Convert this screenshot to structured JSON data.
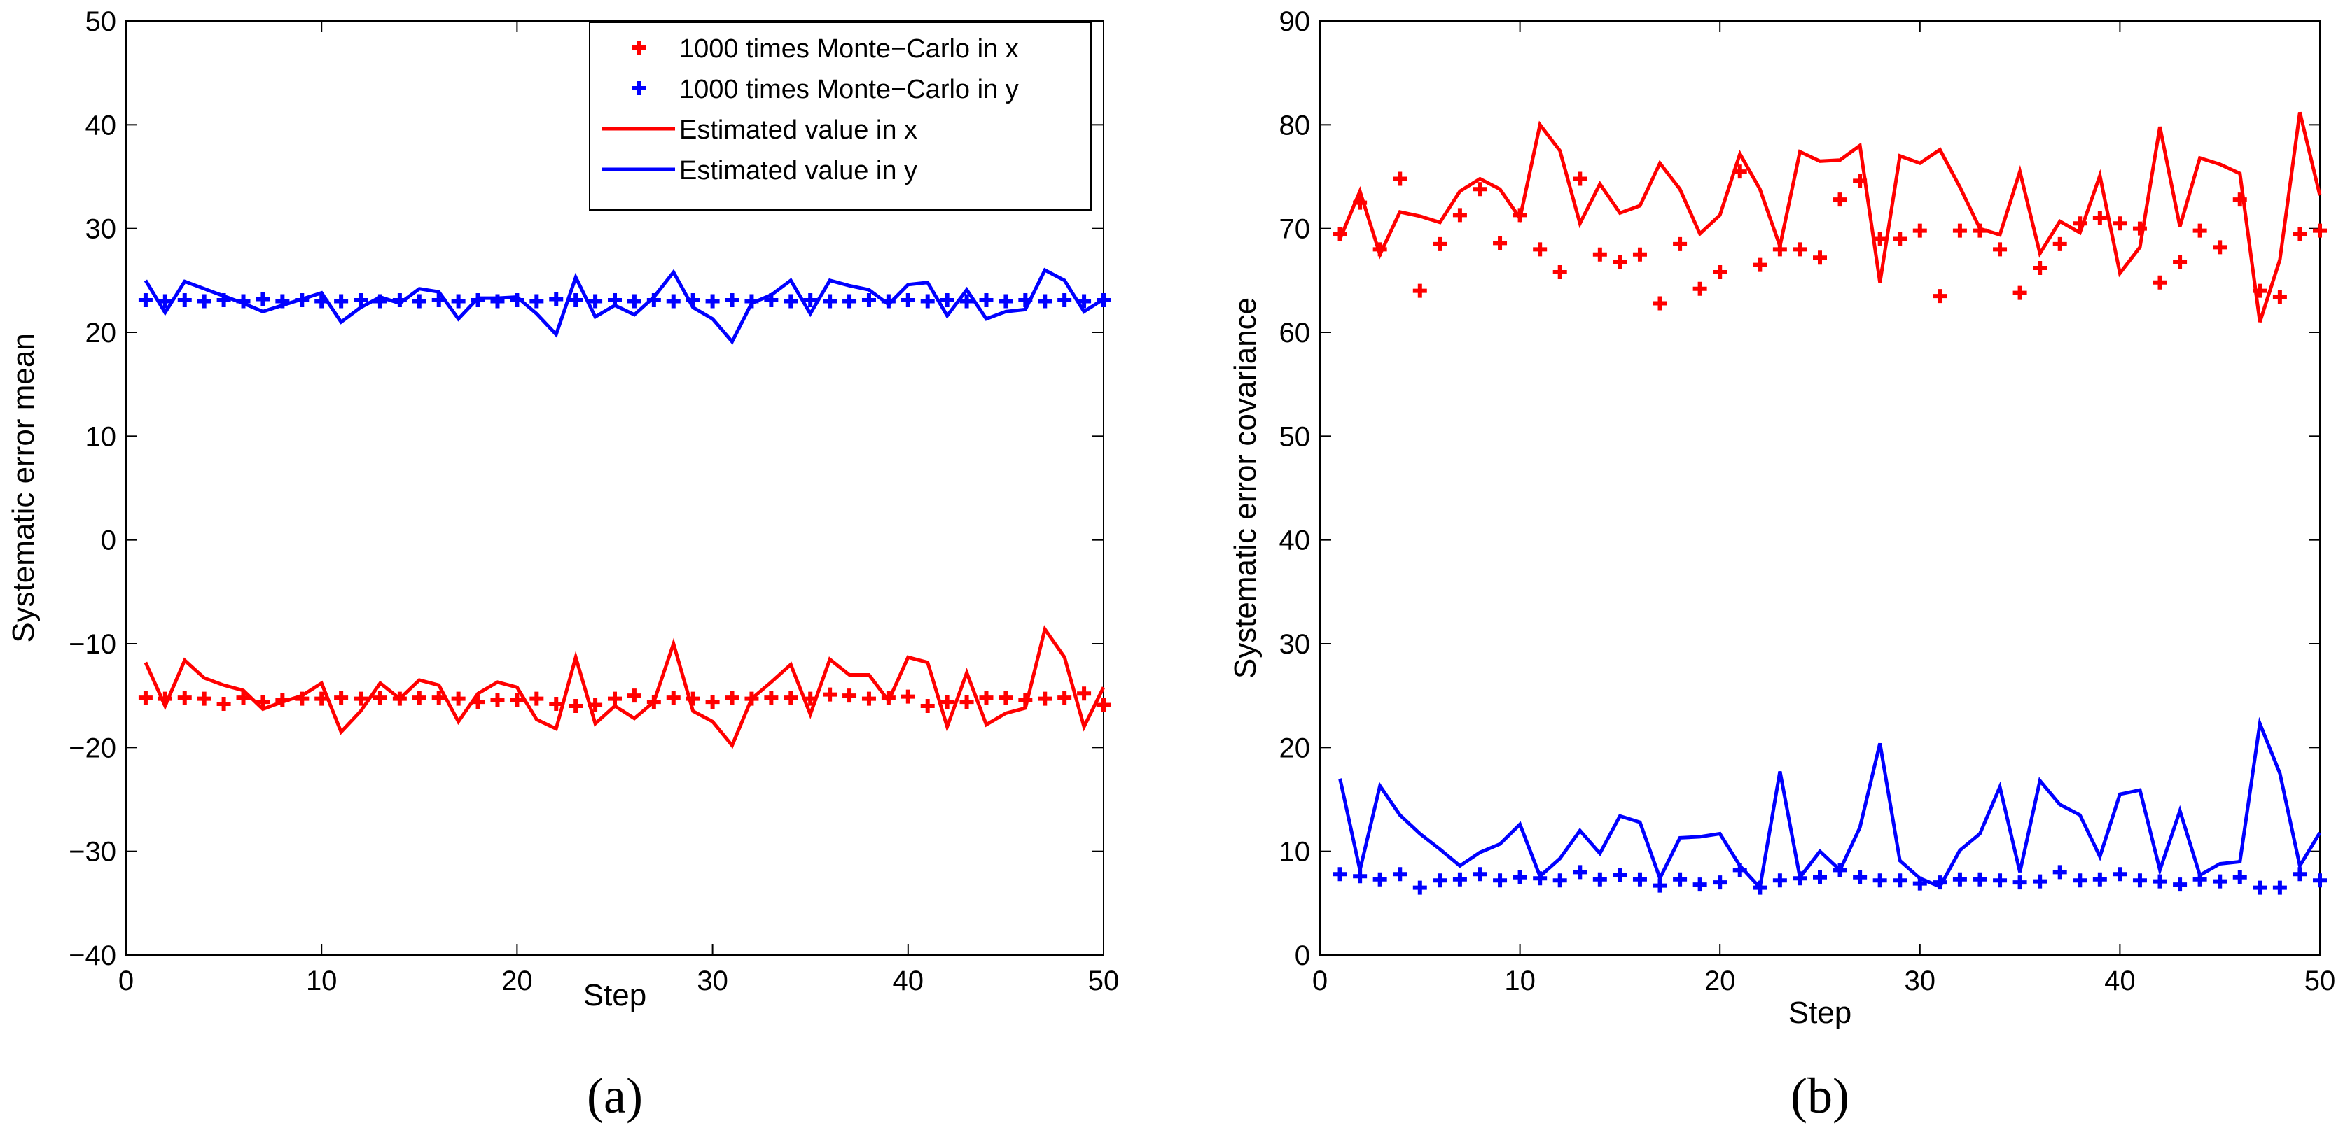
{
  "chart_data": [
    {
      "type": "line",
      "caption": "(a)",
      "xlabel": "Step",
      "ylabel": "Systematic error mean",
      "xlim": [
        0,
        50
      ],
      "ylim": [
        -40,
        50
      ],
      "xticks": [
        0,
        10,
        20,
        30,
        40,
        50
      ],
      "yticks": [
        -40,
        -30,
        -20,
        -10,
        0,
        10,
        20,
        30,
        40,
        50
      ],
      "legend_position": "top-right",
      "series": [
        {
          "name": "1000 times Monte−Carlo in x",
          "style": "markers",
          "color": "#ff0000",
          "x": [
            1,
            2,
            3,
            4,
            5,
            6,
            7,
            8,
            9,
            10,
            11,
            12,
            13,
            14,
            15,
            16,
            17,
            18,
            19,
            20,
            21,
            22,
            23,
            24,
            25,
            26,
            27,
            28,
            29,
            30,
            31,
            32,
            33,
            34,
            35,
            36,
            37,
            38,
            39,
            40,
            41,
            42,
            43,
            44,
            45,
            46,
            47,
            48,
            49,
            50
          ],
          "y": [
            -15.2,
            -15.3,
            -15.2,
            -15.3,
            -15.8,
            -15.2,
            -15.6,
            -15.4,
            -15.3,
            -15.3,
            -15.2,
            -15.3,
            -15.2,
            -15.3,
            -15.2,
            -15.2,
            -15.3,
            -15.6,
            -15.4,
            -15.4,
            -15.3,
            -15.8,
            -16.0,
            -15.9,
            -15.3,
            -15.0,
            -15.6,
            -15.2,
            -15.3,
            -15.6,
            -15.2,
            -15.3,
            -15.2,
            -15.2,
            -15.3,
            -14.9,
            -15.0,
            -15.3,
            -15.2,
            -15.1,
            -16.0,
            -15.6,
            -15.6,
            -15.2,
            -15.2,
            -15.4,
            -15.3,
            -15.2,
            -14.8,
            -15.9
          ]
        },
        {
          "name": "1000 times Monte−Carlo in y",
          "style": "markers",
          "color": "#0000ff",
          "x": [
            1,
            2,
            3,
            4,
            5,
            6,
            7,
            8,
            9,
            10,
            11,
            12,
            13,
            14,
            15,
            16,
            17,
            18,
            19,
            20,
            21,
            22,
            23,
            24,
            25,
            26,
            27,
            28,
            29,
            30,
            31,
            32,
            33,
            34,
            35,
            36,
            37,
            38,
            39,
            40,
            41,
            42,
            43,
            44,
            45,
            46,
            47,
            48,
            49,
            50
          ],
          "y": [
            23.1,
            23.0,
            23.1,
            23.0,
            23.1,
            23.0,
            23.2,
            23.0,
            23.1,
            23.0,
            23.0,
            23.1,
            23.0,
            23.1,
            23.0,
            23.1,
            23.0,
            23.1,
            23.0,
            23.1,
            23.0,
            23.2,
            23.1,
            23.0,
            23.1,
            23.0,
            23.1,
            23.0,
            23.1,
            23.0,
            23.1,
            23.0,
            23.1,
            23.0,
            23.1,
            23.0,
            23.0,
            23.1,
            23.0,
            23.1,
            23.0,
            23.1,
            23.0,
            23.1,
            23.0,
            23.1,
            23.0,
            23.1,
            23.0,
            23.1
          ]
        },
        {
          "name": "Estimated value in x",
          "style": "line",
          "color": "#ff0000",
          "x": [
            1,
            2,
            3,
            4,
            5,
            6,
            7,
            8,
            9,
            10,
            11,
            12,
            13,
            14,
            15,
            16,
            17,
            18,
            19,
            20,
            21,
            22,
            23,
            24,
            25,
            26,
            27,
            28,
            29,
            30,
            31,
            32,
            33,
            34,
            35,
            36,
            37,
            38,
            39,
            40,
            41,
            42,
            43,
            44,
            45,
            46,
            47,
            48,
            49,
            50
          ],
          "y": [
            -11.8,
            -16.0,
            -11.6,
            -13.3,
            -14.0,
            -14.5,
            -16.3,
            -15.6,
            -15.0,
            -13.8,
            -18.5,
            -16.5,
            -13.8,
            -15.3,
            -13.5,
            -14.0,
            -17.5,
            -14.8,
            -13.7,
            -14.2,
            -17.3,
            -18.2,
            -11.3,
            -17.7,
            -16.0,
            -17.2,
            -15.6,
            -10.0,
            -16.5,
            -17.5,
            -19.8,
            -15.3,
            -13.7,
            -12.0,
            -16.8,
            -11.5,
            -13.0,
            -13.0,
            -15.5,
            -11.3,
            -11.8,
            -18.0,
            -12.8,
            -17.8,
            -16.7,
            -16.2,
            -8.6,
            -11.3,
            -18.0,
            -14.2
          ]
        },
        {
          "name": "Estimated value in y",
          "style": "line",
          "color": "#0000ff",
          "x": [
            1,
            2,
            3,
            4,
            5,
            6,
            7,
            8,
            9,
            10,
            11,
            12,
            13,
            14,
            15,
            16,
            17,
            18,
            19,
            20,
            21,
            22,
            23,
            24,
            25,
            26,
            27,
            28,
            29,
            30,
            31,
            32,
            33,
            34,
            35,
            36,
            37,
            38,
            39,
            40,
            41,
            42,
            43,
            44,
            45,
            46,
            47,
            48,
            49,
            50
          ],
          "y": [
            25.0,
            21.9,
            24.9,
            24.2,
            23.5,
            22.8,
            22.0,
            22.6,
            23.2,
            23.8,
            21.0,
            22.4,
            23.4,
            22.8,
            24.2,
            23.9,
            21.3,
            23.3,
            23.3,
            23.4,
            21.8,
            19.8,
            25.3,
            21.5,
            22.6,
            21.7,
            23.4,
            25.8,
            22.4,
            21.3,
            19.1,
            22.8,
            23.6,
            25.0,
            21.8,
            25.0,
            24.5,
            24.1,
            22.7,
            24.6,
            24.8,
            21.6,
            24.1,
            21.3,
            22.0,
            22.2,
            26.0,
            25.0,
            22.0,
            23.2
          ]
        }
      ]
    },
    {
      "type": "line",
      "caption": "(b)",
      "xlabel": "Step",
      "ylabel": "Systematic error covariance",
      "xlim": [
        0,
        50
      ],
      "ylim": [
        0,
        90
      ],
      "xticks": [
        0,
        10,
        20,
        30,
        40,
        50
      ],
      "yticks": [
        0,
        10,
        20,
        30,
        40,
        50,
        60,
        70,
        80,
        90
      ],
      "legend_position": "none",
      "series": [
        {
          "name": "1000 times Monte-Carlo in x",
          "style": "markers",
          "color": "#ff0000",
          "x": [
            1,
            2,
            3,
            4,
            5,
            6,
            7,
            8,
            9,
            10,
            11,
            12,
            13,
            14,
            15,
            16,
            17,
            18,
            19,
            20,
            21,
            22,
            23,
            24,
            25,
            26,
            27,
            28,
            29,
            30,
            31,
            32,
            33,
            34,
            35,
            36,
            37,
            38,
            39,
            40,
            41,
            42,
            43,
            44,
            45,
            46,
            47,
            48,
            49,
            50
          ],
          "y": [
            69.5,
            72.5,
            68.0,
            74.8,
            64.0,
            68.5,
            71.3,
            73.8,
            68.6,
            71.3,
            68.0,
            65.8,
            74.8,
            67.5,
            66.8,
            67.5,
            62.8,
            68.5,
            64.2,
            65.8,
            75.5,
            66.5,
            68.0,
            68.0,
            67.2,
            72.8,
            74.6,
            69.0,
            69.0,
            69.8,
            63.5,
            69.8,
            69.8,
            68.0,
            63.8,
            66.2,
            68.5,
            70.5,
            71.0,
            70.5,
            70.0,
            64.8,
            66.8,
            69.8,
            68.2,
            72.8,
            64.0,
            63.4,
            69.5,
            69.8
          ]
        },
        {
          "name": "1000 times Monte-Carlo in y",
          "style": "markers",
          "color": "#0000ff",
          "x": [
            1,
            2,
            3,
            4,
            5,
            6,
            7,
            8,
            9,
            10,
            11,
            12,
            13,
            14,
            15,
            16,
            17,
            18,
            19,
            20,
            21,
            22,
            23,
            24,
            25,
            26,
            27,
            28,
            29,
            30,
            31,
            32,
            33,
            34,
            35,
            36,
            37,
            38,
            39,
            40,
            41,
            42,
            43,
            44,
            45,
            46,
            47,
            48,
            49,
            50
          ],
          "y": [
            7.8,
            7.6,
            7.3,
            7.8,
            6.5,
            7.2,
            7.3,
            7.8,
            7.2,
            7.5,
            7.4,
            7.2,
            8.0,
            7.3,
            7.7,
            7.3,
            6.7,
            7.3,
            6.8,
            7.0,
            8.2,
            6.5,
            7.2,
            7.4,
            7.5,
            8.2,
            7.5,
            7.2,
            7.2,
            6.9,
            7.0,
            7.3,
            7.3,
            7.2,
            7.0,
            7.1,
            8.0,
            7.2,
            7.3,
            7.8,
            7.2,
            7.1,
            6.8,
            7.3,
            7.1,
            7.5,
            6.5,
            6.5,
            7.8,
            7.2
          ]
        },
        {
          "name": "Estimated value in x",
          "style": "line",
          "color": "#ff0000",
          "x": [
            1,
            2,
            3,
            4,
            5,
            6,
            7,
            8,
            9,
            10,
            11,
            12,
            13,
            14,
            15,
            16,
            17,
            18,
            19,
            20,
            21,
            22,
            23,
            24,
            25,
            26,
            27,
            28,
            29,
            30,
            31,
            32,
            33,
            34,
            35,
            36,
            37,
            38,
            39,
            40,
            41,
            42,
            43,
            44,
            45,
            46,
            47,
            48,
            49,
            50
          ],
          "y": [
            69.0,
            73.6,
            67.5,
            71.6,
            71.2,
            70.6,
            73.6,
            74.8,
            73.8,
            71.0,
            80.0,
            77.5,
            70.5,
            74.3,
            71.5,
            72.2,
            76.3,
            73.8,
            69.5,
            71.3,
            77.2,
            73.8,
            68.3,
            77.4,
            76.5,
            76.6,
            78.0,
            64.8,
            77.0,
            76.3,
            77.6,
            74.0,
            70.0,
            69.4,
            75.5,
            67.6,
            70.7,
            69.6,
            75.1,
            65.7,
            68.2,
            79.8,
            70.2,
            76.8,
            76.2,
            75.3,
            61.0,
            67.0,
            81.2,
            73.2
          ]
        },
        {
          "name": "Estimated value in y",
          "style": "line",
          "color": "#0000ff",
          "x": [
            1,
            2,
            3,
            4,
            5,
            6,
            7,
            8,
            9,
            10,
            11,
            12,
            13,
            14,
            15,
            16,
            17,
            18,
            19,
            20,
            21,
            22,
            23,
            24,
            25,
            26,
            27,
            28,
            29,
            30,
            31,
            32,
            33,
            34,
            35,
            36,
            37,
            38,
            39,
            40,
            41,
            42,
            43,
            44,
            45,
            46,
            47,
            48,
            49,
            50
          ],
          "y": [
            17.0,
            8.2,
            16.3,
            13.5,
            11.7,
            10.2,
            8.6,
            9.9,
            10.7,
            12.6,
            7.6,
            9.3,
            12.0,
            9.8,
            13.4,
            12.8,
            7.4,
            11.3,
            11.4,
            11.7,
            8.6,
            6.5,
            17.7,
            7.5,
            10.0,
            8.2,
            12.3,
            20.4,
            9.1,
            7.4,
            6.6,
            10.1,
            11.7,
            16.2,
            8.0,
            16.8,
            14.5,
            13.5,
            9.5,
            15.5,
            15.9,
            8.2,
            13.9,
            7.7,
            8.8,
            9.0,
            22.3,
            17.5,
            8.6,
            11.8
          ]
        }
      ]
    }
  ]
}
